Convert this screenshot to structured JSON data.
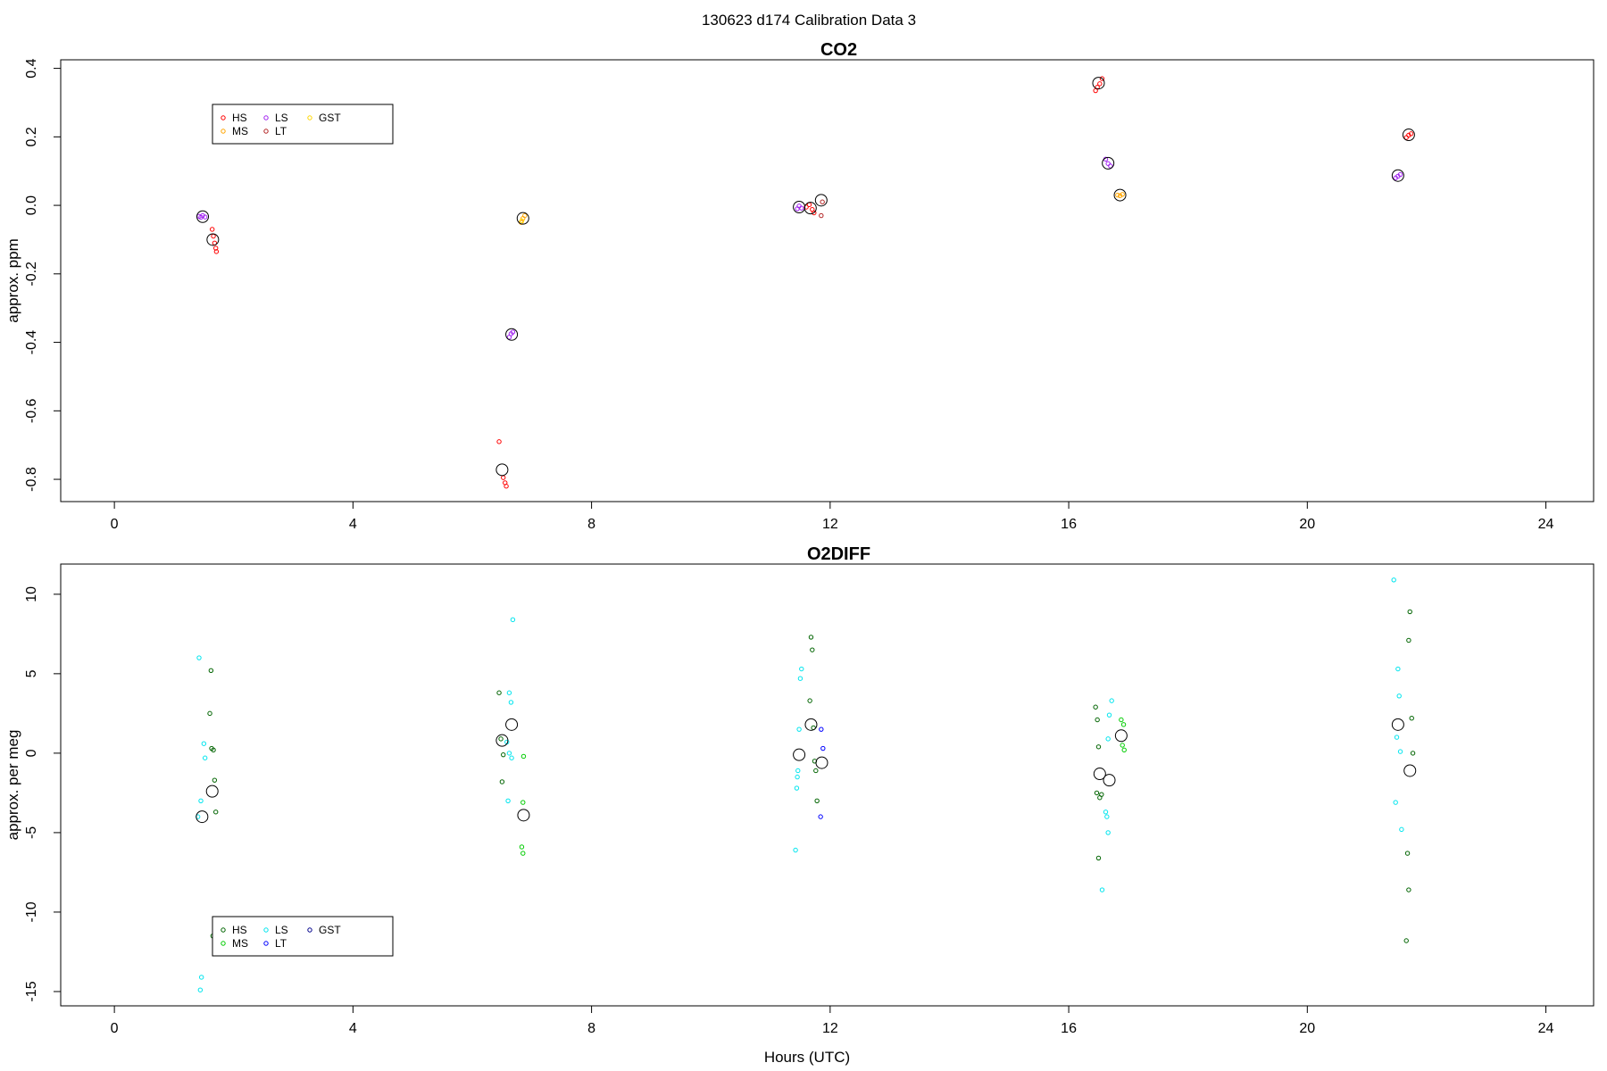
{
  "suptitle": "130623   d174   Calibration Data 3",
  "chart_data": [
    {
      "type": "scatter",
      "title": "CO2",
      "xlabel": "",
      "ylabel": "approx. ppm",
      "xlim": [
        -0.9,
        24.8
      ],
      "ylim": [
        -0.865,
        0.425
      ],
      "xticks": [
        0,
        4,
        8,
        12,
        16,
        20,
        24
      ],
      "yticks": [
        -0.8,
        -0.6,
        -0.4,
        -0.2,
        0.0,
        0.2,
        0.4
      ],
      "ytick_labels": [
        "-0.8",
        "-0.6",
        "-0.4",
        "-0.2",
        "0.0",
        "0.2",
        "0.4"
      ],
      "legend": {
        "placement": "top-left",
        "entries": [
          {
            "label": "HS",
            "color": "#ff0000"
          },
          {
            "label": "MS",
            "color": "#ffa500"
          },
          {
            "label": "LS",
            "color": "#a020f0"
          },
          {
            "label": "LT",
            "color": "#b22222"
          },
          {
            "label": "GST",
            "color": "#ffd700"
          }
        ]
      },
      "series": [
        {
          "key": "HS",
          "color": "#ff0000",
          "points": [
            [
              1.64,
              -0.07
            ],
            [
              1.66,
              -0.09
            ],
            [
              1.68,
              -0.11
            ],
            [
              1.7,
              -0.125
            ],
            [
              1.71,
              -0.135
            ],
            [
              6.45,
              -0.69
            ],
            [
              6.52,
              -0.795
            ],
            [
              6.55,
              -0.81
            ],
            [
              6.57,
              -0.82
            ],
            [
              11.6,
              -0.005
            ],
            [
              11.65,
              0.002
            ],
            [
              11.7,
              -0.012
            ],
            [
              11.73,
              -0.022
            ],
            [
              16.45,
              0.335
            ],
            [
              16.48,
              0.345
            ],
            [
              16.52,
              0.355
            ],
            [
              16.56,
              0.37
            ],
            [
              21.66,
              0.198
            ],
            [
              21.7,
              0.205
            ],
            [
              21.74,
              0.209
            ]
          ]
        },
        {
          "key": "MS",
          "color": "#ffa500",
          "points": [
            [
              6.82,
              -0.05
            ],
            [
              6.85,
              -0.038
            ],
            [
              6.88,
              -0.03
            ],
            [
              16.82,
              0.03
            ],
            [
              16.86,
              0.028
            ],
            [
              16.9,
              0.032
            ]
          ]
        },
        {
          "key": "LS",
          "color": "#a020f0",
          "points": [
            [
              1.42,
              -0.032
            ],
            [
              1.45,
              -0.035
            ],
            [
              1.48,
              -0.03
            ],
            [
              1.52,
              -0.034
            ],
            [
              6.62,
              -0.385
            ],
            [
              6.65,
              -0.375
            ],
            [
              6.68,
              -0.37
            ],
            [
              11.45,
              -0.01
            ],
            [
              11.48,
              -0.002
            ],
            [
              11.52,
              -0.008
            ],
            [
              16.62,
              0.135
            ],
            [
              16.66,
              0.122
            ],
            [
              16.7,
              0.115
            ],
            [
              21.48,
              0.08
            ],
            [
              21.52,
              0.085
            ],
            [
              21.56,
              0.09
            ]
          ]
        },
        {
          "key": "LT",
          "color": "#b22222",
          "points": [
            [
              11.85,
              -0.03
            ],
            [
              11.87,
              0.01
            ]
          ]
        },
        {
          "key": "GST",
          "color": "#ffd700",
          "points": [
            [
              6.83,
              -0.045
            ]
          ]
        }
      ],
      "means": [
        [
          1.48,
          -0.033
        ],
        [
          1.65,
          -0.1
        ],
        [
          6.5,
          -0.772
        ],
        [
          6.66,
          -0.377
        ],
        [
          6.85,
          -0.038
        ],
        [
          11.48,
          -0.005
        ],
        [
          11.67,
          -0.008
        ],
        [
          11.85,
          0.015
        ],
        [
          16.5,
          0.357
        ],
        [
          16.66,
          0.123
        ],
        [
          16.86,
          0.03
        ],
        [
          21.52,
          0.087
        ],
        [
          21.7,
          0.206
        ]
      ]
    },
    {
      "type": "scatter",
      "title": "O2DIFF",
      "xlabel": "Hours (UTC)",
      "ylabel": "approx. per meg",
      "xlim": [
        -0.9,
        24.8
      ],
      "ylim": [
        -15.9,
        11.9
      ],
      "xticks": [
        0,
        4,
        8,
        12,
        16,
        20,
        24
      ],
      "yticks": [
        -15,
        -10,
        -5,
        0,
        5,
        10
      ],
      "ytick_labels": [
        "-15",
        "-10",
        "-5",
        "0",
        "5",
        "10"
      ],
      "legend": {
        "placement": "bottom-left",
        "entries": [
          {
            "label": "HS",
            "color": "#006400"
          },
          {
            "label": "MS",
            "color": "#00cc00"
          },
          {
            "label": "LS",
            "color": "#00e5ee"
          },
          {
            "label": "LT",
            "color": "#0000ff"
          },
          {
            "label": "GST",
            "color": "#00008b"
          }
        ]
      },
      "series": [
        {
          "key": "HS",
          "color": "#006400",
          "points": [
            [
              1.62,
              5.2
            ],
            [
              1.6,
              2.5
            ],
            [
              1.63,
              0.3
            ],
            [
              1.66,
              0.2
            ],
            [
              1.68,
              -1.7
            ],
            [
              1.7,
              -3.7
            ],
            [
              1.65,
              -11.5
            ],
            [
              6.45,
              3.8
            ],
            [
              6.48,
              0.9
            ],
            [
              6.52,
              -0.1
            ],
            [
              6.5,
              -1.8
            ],
            [
              11.68,
              7.3
            ],
            [
              11.7,
              6.5
            ],
            [
              11.66,
              3.3
            ],
            [
              11.72,
              1.6
            ],
            [
              11.74,
              -0.5
            ],
            [
              11.76,
              -1.1
            ],
            [
              11.78,
              -3.0
            ],
            [
              16.45,
              2.9
            ],
            [
              16.48,
              2.1
            ],
            [
              16.5,
              0.4
            ],
            [
              16.47,
              -2.5
            ],
            [
              16.52,
              -2.8
            ],
            [
              16.55,
              -2.6
            ],
            [
              16.5,
              -6.6
            ],
            [
              21.72,
              8.9
            ],
            [
              21.7,
              7.1
            ],
            [
              21.75,
              2.2
            ],
            [
              21.77,
              0.0
            ],
            [
              21.68,
              -6.3
            ],
            [
              21.7,
              -8.6
            ],
            [
              21.66,
              -11.8
            ]
          ]
        },
        {
          "key": "MS",
          "color": "#00cc00",
          "points": [
            [
              6.86,
              -0.2
            ],
            [
              6.85,
              -3.1
            ],
            [
              6.83,
              -5.9
            ],
            [
              6.85,
              -6.3
            ],
            [
              16.88,
              2.1
            ],
            [
              16.92,
              1.8
            ],
            [
              16.9,
              0.5
            ],
            [
              16.93,
              0.2
            ]
          ]
        },
        {
          "key": "LS",
          "color": "#00e5ee",
          "points": [
            [
              1.42,
              6.0
            ],
            [
              1.5,
              0.6
            ],
            [
              1.52,
              -0.3
            ],
            [
              1.45,
              -3.0
            ],
            [
              1.4,
              -4.0
            ],
            [
              1.46,
              -14.1
            ],
            [
              1.44,
              -14.9
            ],
            [
              6.68,
              8.4
            ],
            [
              6.62,
              3.8
            ],
            [
              6.65,
              3.2
            ],
            [
              6.58,
              0.7
            ],
            [
              6.62,
              0.0
            ],
            [
              6.66,
              -0.3
            ],
            [
              6.6,
              -3.0
            ],
            [
              11.52,
              5.3
            ],
            [
              11.5,
              4.7
            ],
            [
              11.48,
              1.5
            ],
            [
              11.46,
              -1.1
            ],
            [
              11.45,
              -1.5
            ],
            [
              11.44,
              -2.2
            ],
            [
              11.42,
              -6.1
            ],
            [
              16.72,
              3.3
            ],
            [
              16.68,
              2.4
            ],
            [
              16.66,
              0.9
            ],
            [
              16.62,
              -3.7
            ],
            [
              16.64,
              -4.0
            ],
            [
              16.66,
              -5.0
            ],
            [
              16.56,
              -8.6
            ],
            [
              21.45,
              10.9
            ],
            [
              21.52,
              5.3
            ],
            [
              21.54,
              3.6
            ],
            [
              21.5,
              1.0
            ],
            [
              21.56,
              0.1
            ],
            [
              21.48,
              -3.1
            ],
            [
              21.58,
              -4.8
            ]
          ]
        },
        {
          "key": "LT",
          "color": "#0000ff",
          "points": [
            [
              11.85,
              1.5
            ],
            [
              11.88,
              0.3
            ],
            [
              11.84,
              -4.0
            ]
          ]
        },
        {
          "key": "GST",
          "color": "#00008b",
          "points": []
        }
      ],
      "means": [
        [
          1.47,
          -4.0
        ],
        [
          1.64,
          -2.4
        ],
        [
          6.5,
          0.8
        ],
        [
          6.66,
          1.8
        ],
        [
          6.86,
          -3.9
        ],
        [
          11.48,
          -0.1
        ],
        [
          11.68,
          1.8
        ],
        [
          11.86,
          -0.6
        ],
        [
          16.52,
          -1.3
        ],
        [
          16.68,
          -1.7
        ],
        [
          16.88,
          1.1
        ],
        [
          21.52,
          1.8
        ],
        [
          21.72,
          -1.1
        ]
      ]
    }
  ]
}
